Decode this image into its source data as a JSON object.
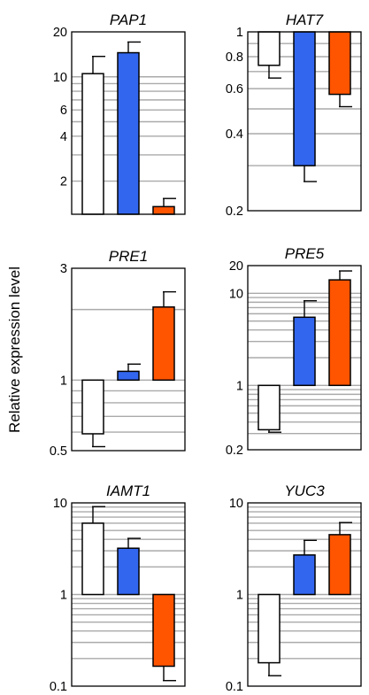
{
  "figure": {
    "ylabel": "Relative expression level"
  },
  "chart_data": [
    {
      "type": "bar",
      "title": "PAP1",
      "scale": "log",
      "ylim": [
        1.2,
        20
      ],
      "ticks": [
        2,
        4,
        6,
        10,
        20
      ],
      "tick_labels": [
        "2",
        "4",
        "6",
        "10",
        "20"
      ],
      "gridlines": [
        2,
        3,
        4,
        5,
        6,
        7,
        8,
        9,
        10
      ],
      "values": [
        10.5,
        14.5,
        1.35
      ],
      "errors": [
        3.2,
        2.6,
        0.18
      ]
    },
    {
      "type": "bar",
      "title": "HAT7",
      "scale": "log",
      "ylim": [
        0.2,
        1.0
      ],
      "ticks": [
        0.2,
        0.4,
        0.6,
        0.8,
        1.0
      ],
      "tick_labels": [
        "0.2",
        "0.4",
        "0.6",
        "0.8",
        "1"
      ],
      "gridlines": [
        0.3,
        0.4,
        0.5,
        0.6,
        0.7,
        0.8,
        0.9
      ],
      "values": [
        0.74,
        0.3,
        0.57
      ],
      "errors": [
        0.08,
        0.04,
        0.06
      ]
    },
    {
      "type": "bar",
      "title": "PRE1",
      "scale": "log",
      "ylim": [
        0.5,
        3.0
      ],
      "ticks": [
        0.5,
        1,
        3
      ],
      "tick_labels": [
        "0.5",
        "1",
        "3"
      ],
      "gridlines": [
        0.6,
        0.7,
        0.8,
        0.9,
        1,
        2
      ],
      "values": [
        0.59,
        1.09,
        2.05
      ],
      "errors": [
        0.07,
        0.08,
        0.33
      ]
    },
    {
      "type": "bar",
      "title": "PRE5",
      "scale": "log",
      "ylim": [
        0.2,
        20
      ],
      "ticks": [
        0.2,
        1,
        10,
        20
      ],
      "tick_labels": [
        "0.2",
        "1",
        "10",
        "20"
      ],
      "gridlines": [
        0.3,
        0.4,
        0.5,
        0.6,
        0.7,
        0.8,
        0.9,
        1,
        2,
        3,
        4,
        5,
        6,
        7,
        8,
        9,
        10
      ],
      "values": [
        0.33,
        5.5,
        14.0
      ],
      "errors": [
        0.02,
        2.8,
        3.5
      ]
    },
    {
      "type": "bar",
      "title": "IAMT1",
      "scale": "log",
      "ylim": [
        0.1,
        10
      ],
      "ticks": [
        0.1,
        1,
        10
      ],
      "tick_labels": [
        "0.1",
        "1",
        "10"
      ],
      "gridlines": [
        0.2,
        0.3,
        0.4,
        0.5,
        0.6,
        0.7,
        0.8,
        0.9,
        1,
        2,
        3,
        4,
        5,
        6,
        7,
        8,
        9
      ],
      "values": [
        6.0,
        3.2,
        0.165
      ],
      "errors": [
        3.1,
        0.9,
        0.05
      ]
    },
    {
      "type": "bar",
      "title": "YUC3",
      "scale": "log",
      "ylim": [
        0.1,
        10
      ],
      "ticks": [
        0.1,
        1,
        10
      ],
      "tick_labels": [
        "0.1",
        "1",
        "10"
      ],
      "gridlines": [
        0.2,
        0.3,
        0.4,
        0.5,
        0.6,
        0.7,
        0.8,
        0.9,
        1,
        2,
        3,
        4,
        5,
        6,
        7,
        8,
        9
      ],
      "values": [
        0.18,
        2.7,
        4.5
      ],
      "errors": [
        0.05,
        1.2,
        1.6
      ]
    }
  ],
  "colors": {
    "bars": [
      "#ffffff",
      "#3366ee",
      "#ff5500"
    ],
    "bar_stroke": "#000000",
    "grid": "#aaaaaa",
    "frame": "#000000"
  }
}
